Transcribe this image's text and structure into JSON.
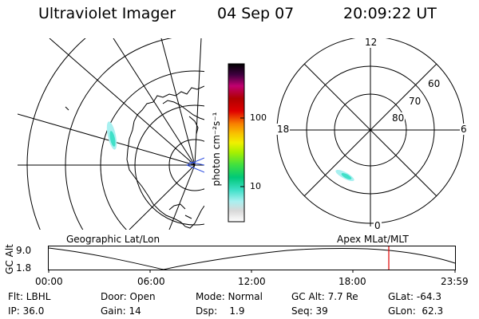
{
  "header": {
    "instrument": "Ultraviolet Imager",
    "date": "04 Sep 07",
    "time": "20:09:22 UT"
  },
  "left_panel": {
    "label": "Geographic Lat/Lon"
  },
  "right_panel": {
    "label": "Apex MLat/MLT",
    "mlt_labels": {
      "top": "12",
      "bottom": "0",
      "left": "18",
      "right": "6"
    },
    "lat_labels": [
      "60",
      "70",
      "80"
    ]
  },
  "colorbar": {
    "unit_label": "photon cm⁻²s⁻¹",
    "ticks": [
      {
        "label": "100",
        "value": 100
      },
      {
        "label": "10",
        "value": 10
      }
    ],
    "colors": [
      "#ffffff",
      "#d8d8d8",
      "#a8f0f0",
      "#40e0c8",
      "#00c878",
      "#40e040",
      "#a8f000",
      "#f0f000",
      "#f8c000",
      "#f88000",
      "#e00000",
      "#b00000",
      "#c00070",
      "#400040",
      "#000000"
    ]
  },
  "timeline": {
    "y_label": "GC Alt",
    "y_ticks": [
      "9.0",
      "1.8"
    ],
    "x_ticks": [
      "00:00",
      "06:00",
      "12:00",
      "18:00",
      "23:59"
    ],
    "marker_color": "#e00000"
  },
  "footer": {
    "rows": [
      [
        "Flt: LBHL",
        "Door: Open",
        "Mode: Normal",
        "GC Alt: 7.7 Re",
        "GLat: -64.3"
      ],
      [
        "IP: 36.0",
        "Gain: 14",
        "Dsp:    1.9",
        "Seq: 39",
        "GLon:  62.3"
      ]
    ]
  },
  "colors": {
    "aurora": "#40e0c8",
    "outline": "#000000"
  }
}
